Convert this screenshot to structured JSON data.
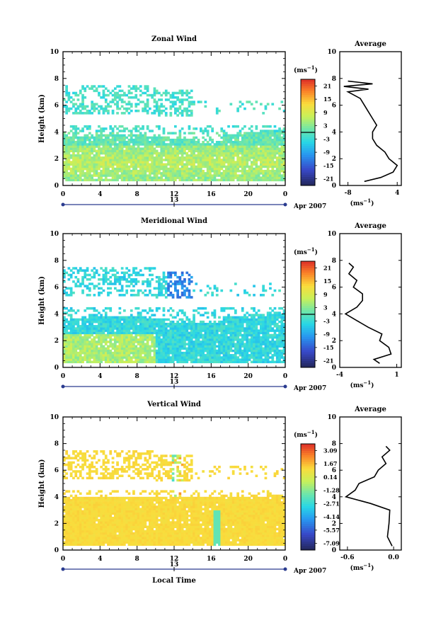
{
  "figure": {
    "x_label": "Local Time",
    "date_label": "Apr 2007",
    "day_label": "13",
    "average_title": "Average",
    "colorbar_unit": "(ms",
    "avg_unit": "(ms",
    "unit_exp": "−1"
  },
  "chart_data": [
    {
      "type": "heatmap",
      "title": "Zonal Wind",
      "ylabel": "Height (km)",
      "xlabel": "",
      "xlim": [
        0,
        24
      ],
      "ylim": [
        0,
        10
      ],
      "x_ticks": [
        "0",
        "4",
        "8",
        "12",
        "16",
        "20",
        "0"
      ],
      "y_ticks": [
        "0",
        "2",
        "4",
        "6",
        "8",
        "10"
      ],
      "colorbar": {
        "ticks": [
          "21",
          "15",
          "9",
          "3",
          "-3",
          "-9",
          "-15",
          "-21"
        ],
        "range": [
          -24,
          24
        ],
        "contour_level": 0
      },
      "average": {
        "x_ticks": [
          "-8",
          "4"
        ],
        "xlim": [
          -10,
          5
        ],
        "height_km": [
          0.3,
          0.6,
          1.0,
          1.5,
          2.0,
          2.5,
          3.0,
          3.5,
          4.0,
          4.5,
          5.0,
          5.5,
          6.0,
          6.5,
          7.0,
          7.2,
          7.4,
          7.6,
          7.8
        ],
        "value": [
          -4,
          0,
          3,
          4,
          2,
          1,
          -1,
          -2,
          -2,
          -1,
          -2,
          -3,
          -4,
          -5,
          -8,
          -3,
          -9,
          -2,
          -8
        ]
      }
    },
    {
      "type": "heatmap",
      "title": "Meridional Wind",
      "ylabel": "Height (km)",
      "xlabel": "",
      "xlim": [
        0,
        24
      ],
      "ylim": [
        0,
        10
      ],
      "x_ticks": [
        "0",
        "4",
        "8",
        "12",
        "16",
        "20",
        "0"
      ],
      "y_ticks": [
        "0",
        "2",
        "4",
        "6",
        "8",
        "10"
      ],
      "colorbar": {
        "ticks": [
          "21",
          "15",
          "9",
          "3",
          "-3",
          "-9",
          "-15",
          "-21"
        ],
        "range": [
          -24,
          24
        ],
        "contour_level": 0
      },
      "average": {
        "x_ticks": [
          "-4",
          "1"
        ],
        "xlim": [
          -4,
          1.4
        ],
        "height_km": [
          0.3,
          0.6,
          1.0,
          1.5,
          2.0,
          2.5,
          3.0,
          3.5,
          4.0,
          4.5,
          5.0,
          5.5,
          6.0,
          6.5,
          7.0,
          7.5,
          7.8
        ],
        "value": [
          -0.5,
          -1.0,
          0.5,
          0.3,
          -0.5,
          -0.3,
          -1.5,
          -2.5,
          -3.5,
          -2.5,
          -2.0,
          -2.0,
          -2.8,
          -2.5,
          -3.2,
          -2.8,
          -3.2
        ]
      }
    },
    {
      "type": "heatmap",
      "title": "Vertical Wind",
      "ylabel": "Height (km)",
      "xlabel": "Local Time",
      "xlim": [
        0,
        24
      ],
      "ylim": [
        0,
        10
      ],
      "x_ticks": [
        "0",
        "4",
        "8",
        "12",
        "16",
        "20",
        "0"
      ],
      "y_ticks": [
        "0",
        "2",
        "4",
        "6",
        "8",
        "10"
      ],
      "colorbar": {
        "ticks": [
          "3.09",
          "1.67",
          "0.14",
          "-1.28",
          "-2.71",
          "-4.14",
          "-5.57",
          "-7.09"
        ],
        "range": [
          -7.8,
          3.8
        ],
        "contour_level": null
      },
      "average": {
        "x_ticks": [
          "-0.6",
          "0.0"
        ],
        "xlim": [
          -0.7,
          0.1
        ],
        "height_km": [
          0.3,
          1.0,
          2.0,
          3.0,
          3.5,
          4.0,
          4.5,
          5.0,
          5.5,
          6.0,
          6.5,
          7.0,
          7.5,
          7.8
        ],
        "value": [
          -0.02,
          -0.08,
          -0.06,
          -0.05,
          -0.3,
          -0.62,
          -0.5,
          -0.45,
          -0.25,
          -0.2,
          -0.1,
          -0.15,
          -0.05,
          -0.1
        ]
      }
    }
  ]
}
